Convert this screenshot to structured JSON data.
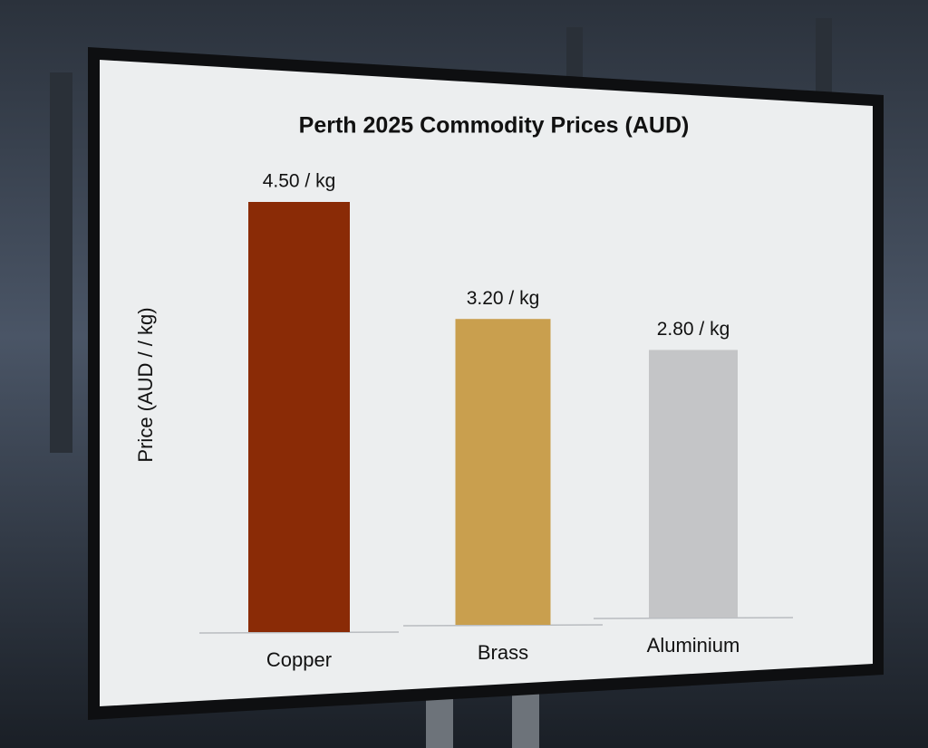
{
  "chart_data": {
    "type": "bar",
    "title": "Perth 2025 Commodity Prices (AUD)",
    "y_label": "Price (AUD / / kg)",
    "categories": [
      "Copper",
      "Brass",
      "Aluminium"
    ],
    "values": [
      4.5,
      3.2,
      2.8
    ],
    "value_labels": [
      "4.50 / kg",
      "3.20 / kg",
      "2.80 / kg"
    ],
    "colors": [
      "#8a2b06",
      "#c99f4e",
      "#c4c5c7"
    ]
  }
}
